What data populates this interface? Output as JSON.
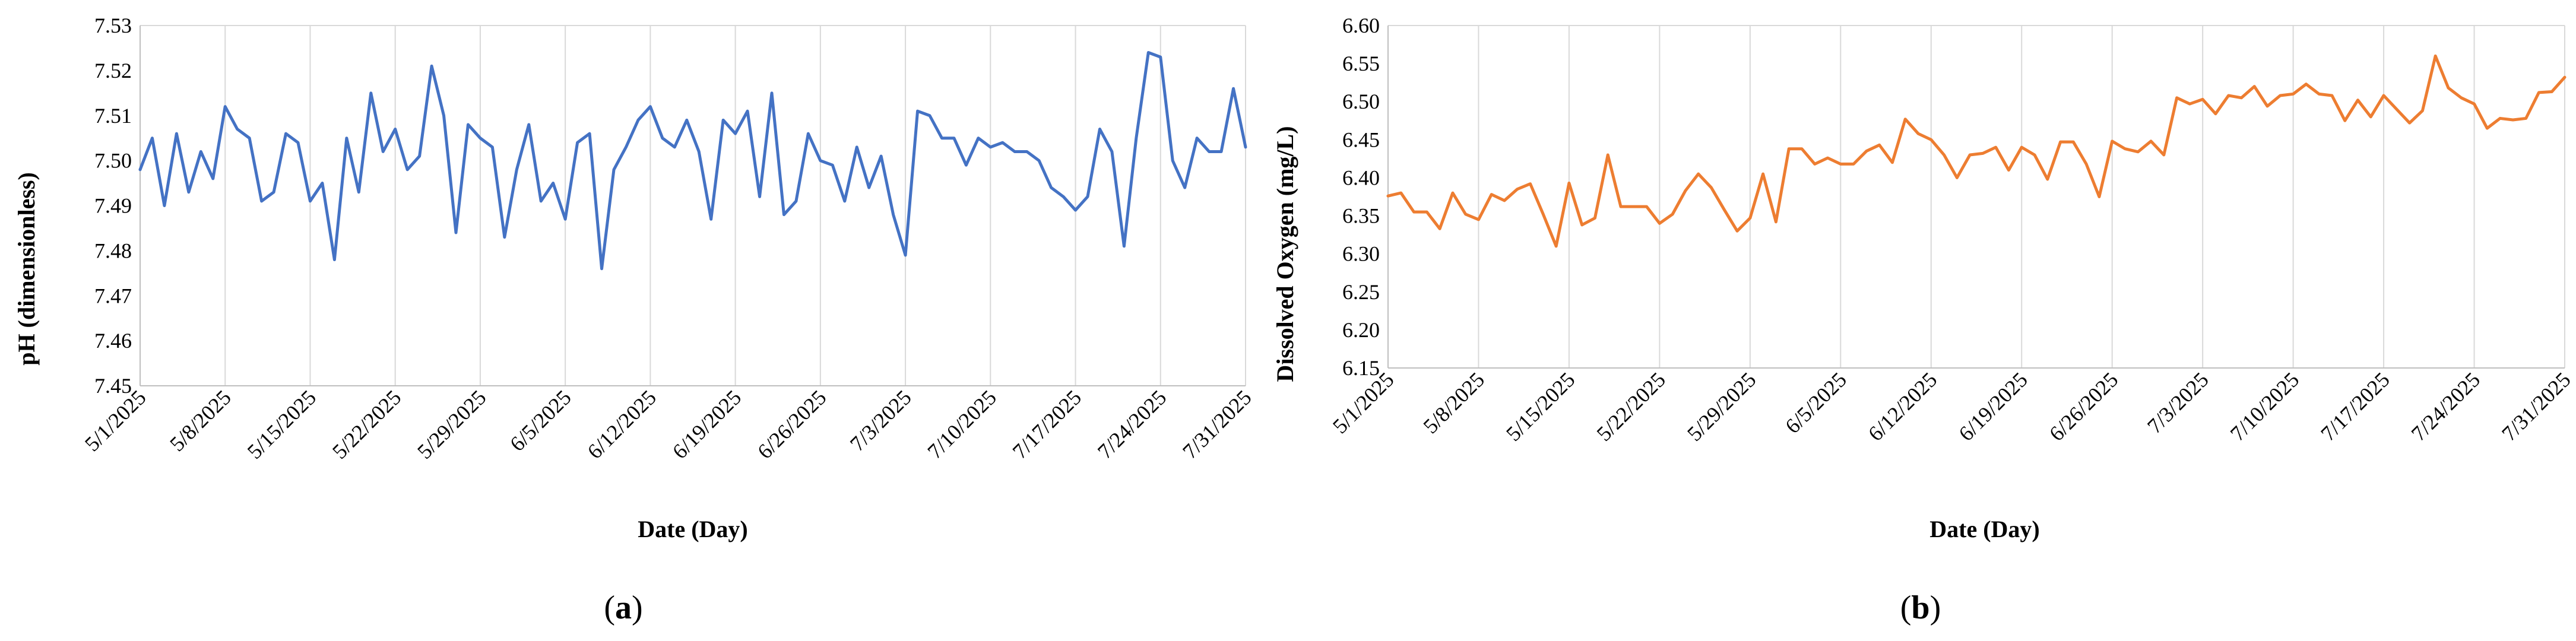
{
  "chart_data": [
    {
      "type": "line",
      "panel_label": "a",
      "title": "",
      "xlabel": "Date (Day)",
      "ylabel": "pH (dimensionless)",
      "ylim": [
        7.45,
        7.53
      ],
      "yticks": [
        "7.45",
        "7.46",
        "7.47",
        "7.48",
        "7.49",
        "7.50",
        "7.51",
        "7.52",
        "7.53"
      ],
      "xticks": [
        "5/1/2025",
        "5/8/2025",
        "5/15/2025",
        "5/22/2025",
        "5/29/2025",
        "6/5/2025",
        "6/12/2025",
        "6/19/2025",
        "6/26/2025",
        "7/3/2025",
        "7/10/2025",
        "7/17/2025",
        "7/24/2025",
        "7/31/2025"
      ],
      "grid": "vertical",
      "legend": "none",
      "color": "#4472C4",
      "x_start": "5/1/2025",
      "x_end": "7/31/2025",
      "values": [
        7.498,
        7.505,
        7.49,
        7.506,
        7.493,
        7.502,
        7.496,
        7.512,
        7.507,
        7.505,
        7.491,
        7.493,
        7.506,
        7.504,
        7.491,
        7.495,
        7.478,
        7.505,
        7.493,
        7.515,
        7.502,
        7.507,
        7.498,
        7.501,
        7.521,
        7.51,
        7.484,
        7.508,
        7.505,
        7.503,
        7.483,
        7.498,
        7.508,
        7.491,
        7.495,
        7.487,
        7.504,
        7.506,
        7.476,
        7.498,
        7.503,
        7.509,
        7.512,
        7.505,
        7.503,
        7.509,
        7.502,
        7.487,
        7.509,
        7.506,
        7.511,
        7.492,
        7.515,
        7.488,
        7.491,
        7.506,
        7.5,
        7.499,
        7.491,
        7.503,
        7.494,
        7.501,
        7.488,
        7.479,
        7.511,
        7.51,
        7.505,
        7.505,
        7.499,
        7.505,
        7.503,
        7.504,
        7.502,
        7.502,
        7.5,
        7.494,
        7.492,
        7.489,
        7.492,
        7.507,
        7.502,
        7.481,
        7.505,
        7.524,
        7.523,
        7.5,
        7.494,
        7.505,
        7.502,
        7.502,
        7.516,
        7.503
      ]
    },
    {
      "type": "line",
      "panel_label": "b",
      "title": "",
      "xlabel": "Date (Day)",
      "ylabel": "Dissolved Oxygen (mg/L)",
      "ylim": [
        6.15,
        6.6
      ],
      "yticks": [
        "6.15",
        "6.20",
        "6.25",
        "6.30",
        "6.35",
        "6.40",
        "6.45",
        "6.50",
        "6.55",
        "6.60"
      ],
      "xticks": [
        "5/1/2025",
        "5/8/2025",
        "5/15/2025",
        "5/22/2025",
        "5/29/2025",
        "6/5/2025",
        "6/12/2025",
        "6/19/2025",
        "6/26/2025",
        "7/3/2025",
        "7/10/2025",
        "7/17/2025",
        "7/24/2025",
        "7/31/2025"
      ],
      "grid": "vertical",
      "legend": "none",
      "color": "#ED7D31",
      "x_start": "5/1/2025",
      "x_end": "7/31/2025",
      "values": [
        6.376,
        6.38,
        6.355,
        6.355,
        6.333,
        6.38,
        6.352,
        6.345,
        6.378,
        6.37,
        6.385,
        6.392,
        6.352,
        6.31,
        6.393,
        6.338,
        6.347,
        6.43,
        6.362,
        6.362,
        6.362,
        6.34,
        6.352,
        6.383,
        6.405,
        6.387,
        6.358,
        6.33,
        6.347,
        6.405,
        6.342,
        6.438,
        6.438,
        6.418,
        6.426,
        6.418,
        6.418,
        6.435,
        6.443,
        6.42,
        6.477,
        6.458,
        6.45,
        6.43,
        6.4,
        6.43,
        6.432,
        6.44,
        6.41,
        6.44,
        6.43,
        6.398,
        6.447,
        6.447,
        6.418,
        6.375,
        6.448,
        6.438,
        6.434,
        6.448,
        6.43,
        6.505,
        6.497,
        6.503,
        6.484,
        6.508,
        6.505,
        6.52,
        6.494,
        6.508,
        6.51,
        6.523,
        6.51,
        6.508,
        6.475,
        6.502,
        6.48,
        6.508,
        6.49,
        6.472,
        6.488,
        6.56,
        6.518,
        6.505,
        6.497,
        6.465,
        6.478,
        6.476,
        6.478,
        6.512,
        6.513,
        6.532
      ]
    }
  ]
}
